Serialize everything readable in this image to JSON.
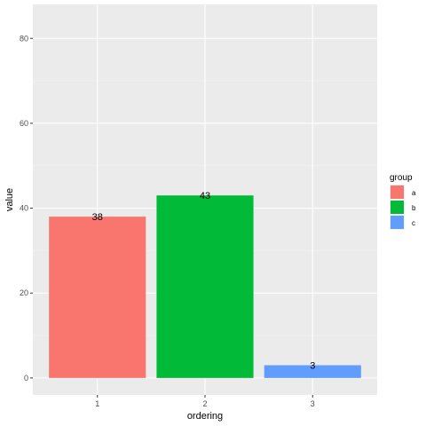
{
  "chart_data": {
    "type": "bar",
    "xlabel": "ordering",
    "ylabel": "value",
    "categories": [
      "1",
      "2",
      "3"
    ],
    "values": [
      38,
      43,
      3
    ],
    "groups": [
      "a",
      "b",
      "c"
    ],
    "bar_labels": [
      "38",
      "43",
      "3"
    ],
    "ylim": [
      -4,
      88
    ],
    "yticks": [
      0,
      20,
      40,
      60,
      80
    ],
    "grid": true,
    "legend": {
      "title": "group",
      "placement": "right",
      "entries": [
        {
          "label": "a",
          "color": "#F8766D"
        },
        {
          "label": "b",
          "color": "#00BA38"
        },
        {
          "label": "c",
          "color": "#619CFF"
        }
      ]
    },
    "colors": {
      "panel_background": "#EBEBEB",
      "grid_major": "#FFFFFF",
      "grid_minor": "#F4F4F4"
    }
  }
}
